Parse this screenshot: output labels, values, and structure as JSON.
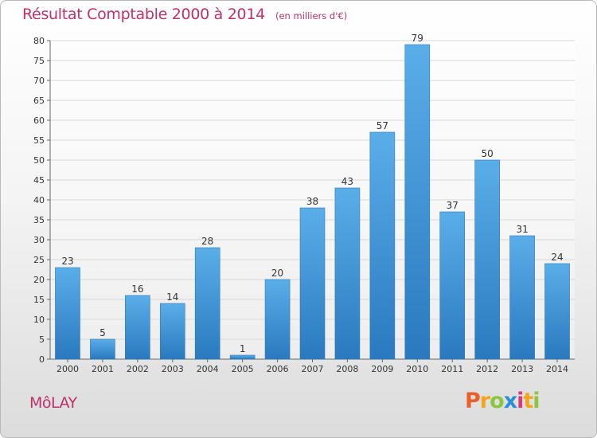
{
  "header": {
    "title": "Résultat Comptable 2000 à 2014",
    "subtitle": "(en milliers d'€)"
  },
  "footer": {
    "commune": "MôLAY",
    "brand": [
      "P",
      "r",
      "o",
      "x",
      "i",
      "t",
      "i"
    ],
    "brand_colors": [
      "#e8602b",
      "#f2a71b",
      "#8cc63f",
      "#2a8fd6",
      "#d93a7d",
      "#f2a71b",
      "#8cc63f"
    ]
  },
  "colors": {
    "bar_top": "#5aaee8",
    "bar_bottom": "#2a79bf",
    "grid": "#d8d8d8",
    "accent": "#c0306a"
  },
  "chart_data": {
    "type": "bar",
    "title": "Résultat Comptable 2000 à 2014",
    "subtitle": "(en milliers d'€)",
    "xlabel": "",
    "ylabel": "",
    "categories": [
      "2000",
      "2001",
      "2002",
      "2003",
      "2004",
      "2005",
      "2006",
      "2007",
      "2008",
      "2009",
      "2010",
      "2011",
      "2012",
      "2013",
      "2014"
    ],
    "values": [
      23,
      5,
      16,
      14,
      28,
      1,
      20,
      38,
      43,
      57,
      79,
      37,
      50,
      31,
      24
    ],
    "ylim": [
      0,
      80
    ],
    "yticks": [
      0,
      5,
      10,
      15,
      20,
      25,
      30,
      35,
      40,
      45,
      50,
      55,
      60,
      65,
      70,
      75,
      80
    ],
    "grid": true,
    "legend": "none"
  }
}
